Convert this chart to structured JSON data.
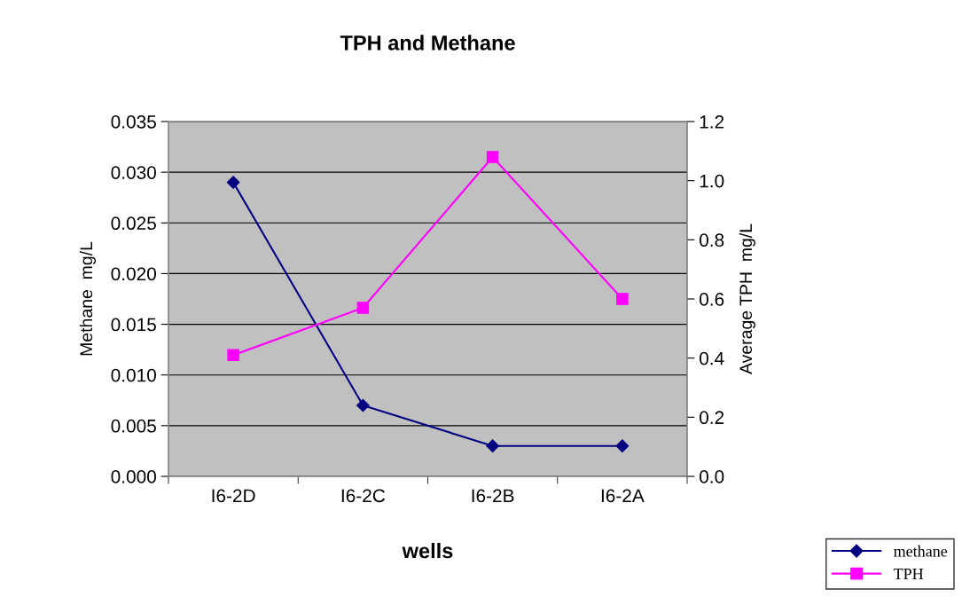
{
  "chart_data": {
    "type": "line",
    "title": "TPH and Methane",
    "xlabel": "wells",
    "ylabel": "Methane  mg/L",
    "y2label": "Average TPH  mg/L",
    "categories": [
      "I6-2D",
      "I6-2C",
      "I6-2B",
      "I6-2A"
    ],
    "series": [
      {
        "name": "methane",
        "color": "#000080",
        "marker": "diamond",
        "values": [
          0.029,
          0.007,
          0.003,
          0.003
        ]
      },
      {
        "name": "TPH",
        "color": "#ff00ff",
        "marker": "square",
        "axis": "y2",
        "values": [
          0.41,
          0.57,
          1.08,
          0.6
        ]
      }
    ],
    "ylim": [
      0,
      0.035
    ],
    "yticks": [
      {
        "value": 0,
        "label": "0.000"
      },
      {
        "value": 0.005,
        "label": "0.005"
      },
      {
        "value": 0.01,
        "label": "0.010"
      },
      {
        "value": 0.015,
        "label": "0.015"
      },
      {
        "value": 0.02,
        "label": "0.020"
      },
      {
        "value": 0.025,
        "label": "0.025"
      },
      {
        "value": 0.03,
        "label": "0.030"
      },
      {
        "value": 0.035,
        "label": "0.035"
      }
    ],
    "y2lim": [
      0,
      1.2
    ],
    "y2ticks": [
      {
        "value": 0,
        "label": "0.0"
      },
      {
        "value": 0.2,
        "label": "0.2"
      },
      {
        "value": 0.4,
        "label": "0.4"
      },
      {
        "value": 0.6,
        "label": "0.6"
      },
      {
        "value": 0.8,
        "label": "0.8"
      },
      {
        "value": 1.0,
        "label": "1.0"
      },
      {
        "value": 1.2,
        "label": "1.2"
      }
    ],
    "grid": "y",
    "legend": "bottom right"
  }
}
